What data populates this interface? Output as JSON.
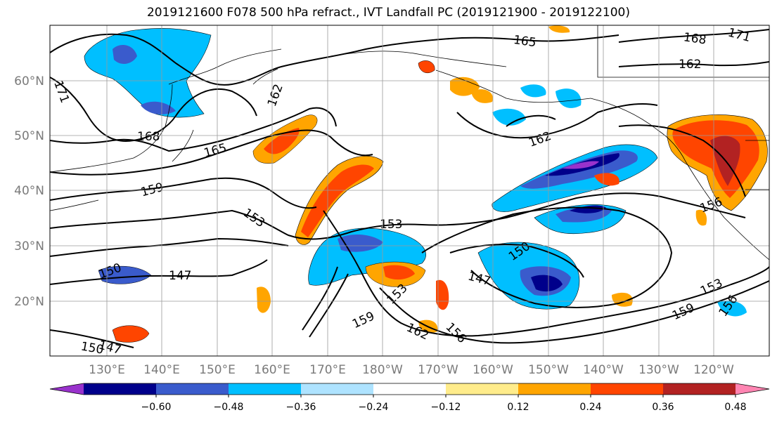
{
  "title": "2019121600 F078 500 hPa refract., IVT Landfall PC (2019121900 - 2019122100)",
  "lat_labels": [
    "60°N",
    "50°N",
    "40°N",
    "30°N",
    "20°N"
  ],
  "lon_labels": [
    "130°E",
    "140°E",
    "150°E",
    "160°E",
    "170°E",
    "180°W",
    "170°W",
    "160°W",
    "150°W",
    "140°W",
    "130°W",
    "120°W"
  ],
  "colorbar": {
    "colors": [
      "#9932cc",
      "#00008b",
      "#3a5bcc",
      "#00bfff",
      "#aee3ff",
      "#ffffff",
      "#ffec8b",
      "#ffa500",
      "#ff4500",
      "#b22222",
      "#ff85b2"
    ],
    "ticks": [
      "−0.60",
      "−0.48",
      "−0.36",
      "−0.24",
      "−0.12",
      "0.12",
      "0.24",
      "0.36",
      "0.48",
      "0.60"
    ]
  },
  "contour_labels": [
    "171",
    "168",
    "165",
    "162",
    "159",
    "156",
    "153",
    "150",
    "147",
    "162",
    "165",
    "168",
    "171",
    "162",
    "162",
    "165",
    "168",
    "159",
    "153",
    "150",
    "147",
    "153",
    "150",
    "147",
    "159",
    "162",
    "153",
    "156",
    "159",
    "153",
    "156",
    "153",
    "150",
    "147",
    "150",
    "168",
    "171",
    "162",
    "153"
  ]
}
